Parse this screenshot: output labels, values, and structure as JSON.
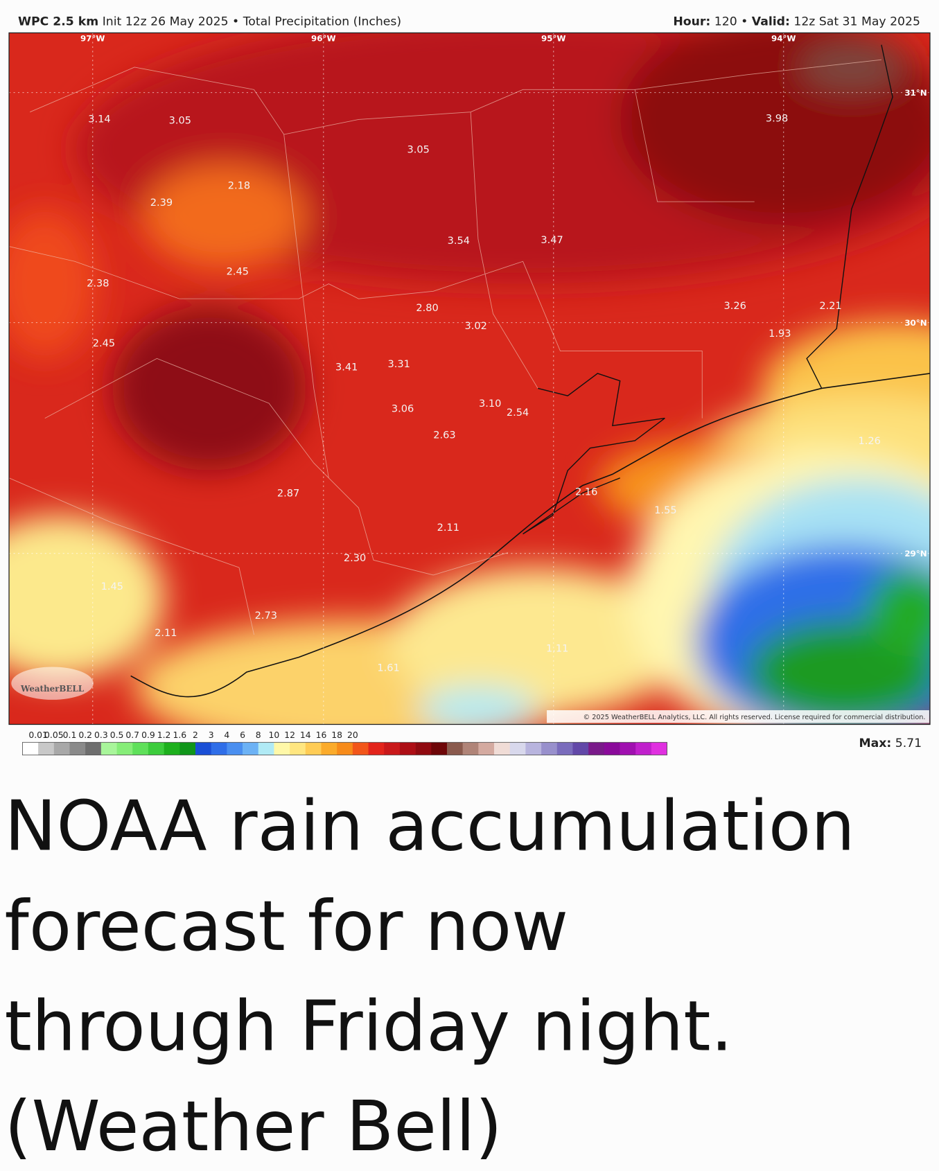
{
  "header": {
    "model": "WPC 2.5 km",
    "init": "Init 12z 26 May 2025",
    "separator": "•",
    "field": "Total Precipitation (Inches)",
    "hour_label": "Hour:",
    "hour": "120",
    "valid_label": "Valid:",
    "valid": "12z Sat 31 May 2025"
  },
  "map": {
    "longitudes": [
      "97°W",
      "96°W",
      "95°W",
      "94°W"
    ],
    "latitudes": [
      "31°N",
      "30°N",
      "29°N"
    ],
    "labels": [
      "3.14",
      "3.05",
      "3.05",
      "2.18",
      "2.39",
      "3.54",
      "3.47",
      "2.45",
      "2.38",
      "2.80",
      "3.02",
      "3.26",
      "2.21",
      "1.93",
      "2.45",
      "3.41",
      "3.31",
      "3.98",
      "3.06",
      "3.10",
      "2.54",
      "2.63",
      "1.26",
      "2.16",
      "2.87",
      "1.55",
      "2.11",
      "2.30",
      "1.45",
      "2.73",
      "2.11",
      "1.11",
      "1.61"
    ],
    "logo": "WeatherBELL",
    "copyright": "© 2025 WeatherBELL Analytics, LLC. All rights reserved. License required for commercial distribution."
  },
  "colorbar": {
    "ticks": [
      "0.01",
      "0.05",
      "0.1",
      "0.2",
      "0.3",
      "0.5",
      "0.7",
      "0.9",
      "1.2",
      "1.6",
      "2",
      "3",
      "4",
      "6",
      "8",
      "10",
      "12",
      "14",
      "16",
      "18",
      "20"
    ],
    "colors": [
      "#ffffff",
      "#c8c8c8",
      "#a8a8a8",
      "#8a8a8a",
      "#6e6e6e",
      "#a8f59a",
      "#86ed78",
      "#5fe05a",
      "#3ccc3c",
      "#1db01d",
      "#10961a",
      "#1a4fd6",
      "#2f6ee8",
      "#4a8ff0",
      "#6cb2f5",
      "#b0eaf5",
      "#fff8a8",
      "#ffe680",
      "#ffcc55",
      "#fbab2b",
      "#f78b1a",
      "#f2561a",
      "#e3241b",
      "#c9181a",
      "#ad0e15",
      "#900a10",
      "#6e0608",
      "#8a5a4d",
      "#b08478",
      "#d4aaa0",
      "#f0dcd6",
      "#d8d8ec",
      "#b8b4de",
      "#9890cc",
      "#7a6cbc",
      "#6248a8",
      "#7a1a8a",
      "#8a0a9a",
      "#a010b0",
      "#c020cc",
      "#e030e0"
    ],
    "max_label": "Max:",
    "max": "5.71"
  },
  "caption": {
    "lines": [
      "NOAA rain accumulation",
      "forecast for now",
      "through Friday night.",
      "(Weather Bell)"
    ]
  }
}
